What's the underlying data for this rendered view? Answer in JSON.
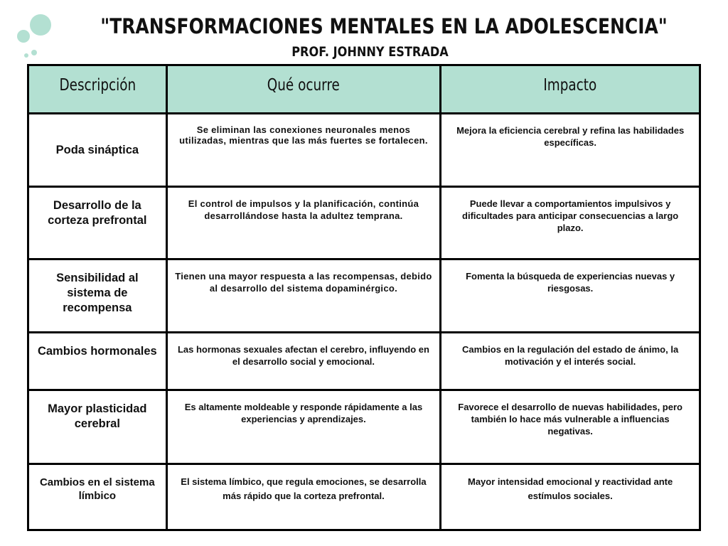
{
  "header": {
    "title": "\"TRANSFORMACIONES MENTALES EN LA ADOLESCENCIA\"",
    "subtitle": "PROF. JOHNNY ESTRADA",
    "accent_color": "#b3e0d2"
  },
  "table": {
    "columns": [
      "Descripción",
      "Qué ocurre",
      "Impacto"
    ],
    "rows": [
      {
        "descripcion": "Poda sináptica",
        "que_ocurre": "Se eliminan las conexiones neuronales menos utilizadas, mientras que las más fuertes se fortalecen.",
        "impacto": "Mejora la eficiencia cerebral y refina las habilidades específicas."
      },
      {
        "descripcion": "Desarrollo de la corteza prefrontal",
        "que_ocurre": "El control de impulsos y la planificación, continúa desarrollándose hasta la adultez temprana.",
        "impacto": "Puede llevar a comportamientos impulsivos y dificultades para anticipar consecuencias a largo plazo."
      },
      {
        "descripcion": "Sensibilidad al sistema de recompensa",
        "que_ocurre": "Tienen una mayor respuesta a las recompensas, debido al desarrollo del sistema dopaminérgico.",
        "impacto": "Fomenta la búsqueda de experiencias nuevas y riesgosas."
      },
      {
        "descripcion": "Cambios hormonales",
        "que_ocurre": "Las hormonas sexuales afectan el cerebro, influyendo en el desarrollo social y emocional.",
        "impacto": "Cambios en la regulación del estado de ánimo, la motivación y el interés social."
      },
      {
        "descripcion": "Mayor plasticidad cerebral",
        "que_ocurre": "Es altamente moldeable y responde rápidamente a las experiencias y aprendizajes.",
        "impacto": "Favorece el desarrollo de nuevas habilidades, pero también lo hace más vulnerable a influencias negativas."
      },
      {
        "descripcion": "Cambios en el sistema límbico",
        "que_ocurre": "El sistema límbico, que regula emociones, se desarrolla más rápido que la corteza prefrontal.",
        "impacto": "Mayor intensidad emocional y reactividad ante estímulos sociales."
      }
    ]
  }
}
